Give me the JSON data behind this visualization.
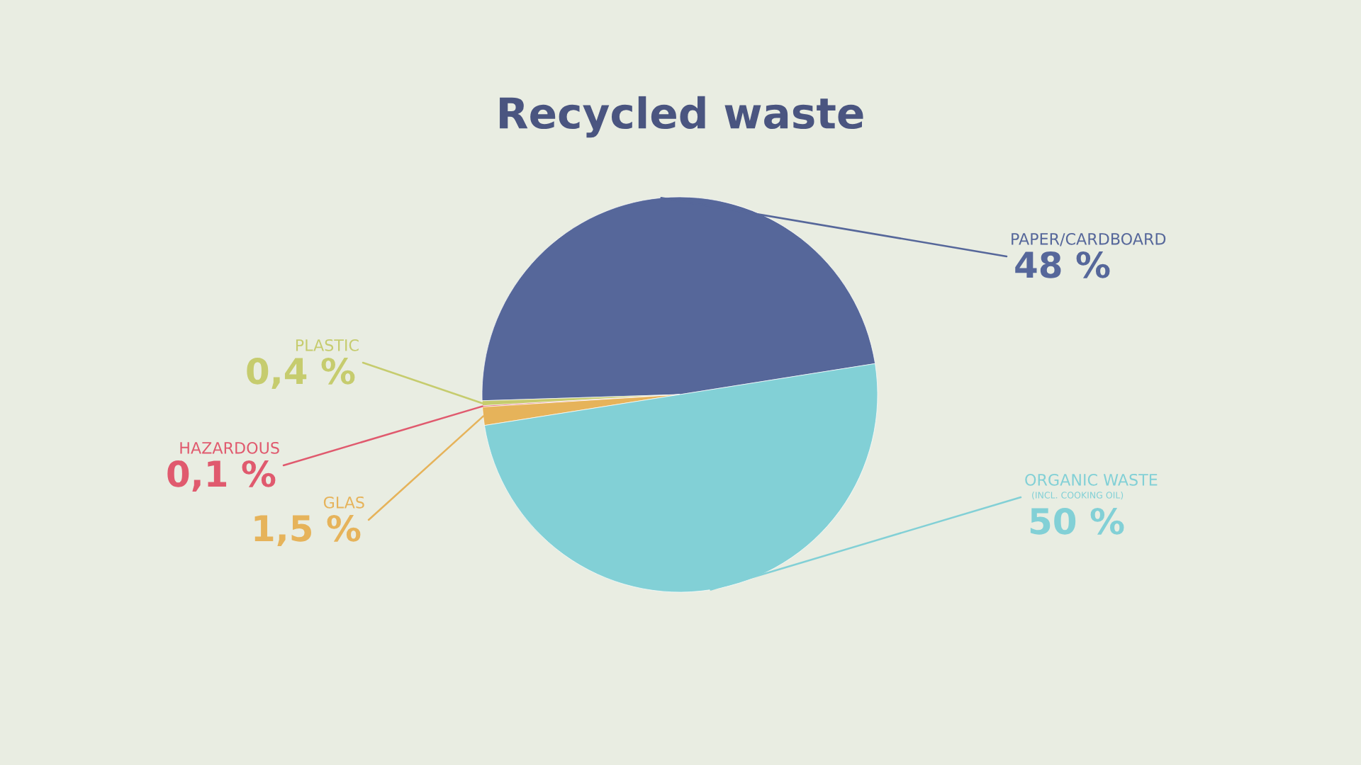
{
  "chart_data": {
    "type": "pie",
    "title": "Recycled waste",
    "categories": [
      "PAPER/CARDBOARD",
      "PLASTIC",
      "HAZARDOUS",
      "GLAS",
      "ORGANIC WASTE"
    ],
    "values": [
      48,
      0.4,
      0.1,
      1.5,
      50
    ],
    "value_labels": [
      "48 %",
      "0,4 %",
      "0,1 %",
      "1,5 %",
      "50 %"
    ],
    "colors": [
      "#56679a",
      "#c6cc6e",
      "#e05a6e",
      "#e6b35a",
      "#82d0d6"
    ],
    "annotations": [
      {
        "text": "(INCL. COOKING OIL)",
        "x": "ORGANIC WASTE"
      }
    ],
    "legend": false
  }
}
